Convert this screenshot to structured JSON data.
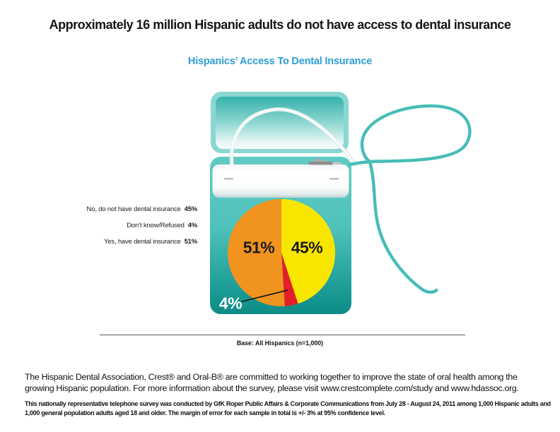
{
  "header": {
    "title": "Approximately 16 million Hispanic adults do not have access to dental insurance",
    "subtitle": "Hispanics’ Access To Dental Insurance"
  },
  "legend": {
    "items": [
      {
        "label": "No, do not have dental insurance",
        "value": "45%"
      },
      {
        "label": "Don’t know/Refused",
        "value": "4%"
      },
      {
        "label": "Yes, have dental insurance",
        "value": "51%"
      }
    ]
  },
  "chart_data": {
    "type": "pie",
    "title": "Hispanics’ Access To Dental Insurance",
    "start_angle_deg": 0,
    "direction": "clockwise",
    "segments": [
      {
        "label": "No, do not have dental insurance",
        "value": 45,
        "pct_label": "45%",
        "color": "#F8E600",
        "text_color": "#1b1b1b"
      },
      {
        "label": "Don’t know/Refused",
        "value": 4,
        "pct_label": "4%",
        "color": "#E2202A",
        "text_color": "#ffffff"
      },
      {
        "label": "Yes, have dental insurance",
        "value": 51,
        "pct_label": "51%",
        "color": "#F0931F",
        "text_color": "#1b1b1b"
      }
    ],
    "base_note": "Base: All Hispanics (n=1,000)"
  },
  "footer": {
    "about": "The Hispanic Dental Association, Crest® and Oral-B® are committed to working together to improve the state of oral health among the growing Hispanic population. For more information about the survey, please visit www.crestcomplete.com/study and www.hdassoc.org.",
    "methodology": "This nationally representative telephone survey was conducted by GfK Roper Public Affairs & Corporate Communications from July 28 - August 24, 2011 among 1,000 Hispanic adults and 1,000 general population adults aged 18 and older. The margin of error for each sample in total is +/- 3% at 95% confidence level."
  },
  "colors": {
    "subtitle_blue": "#2D9ED4",
    "floss_body_teal_top": "#5FCAC3",
    "floss_body_teal_bottom": "#0D8C87",
    "floss_thread_teal": "#47BDB7",
    "lid_frame_teal": "#8AD6D0"
  }
}
